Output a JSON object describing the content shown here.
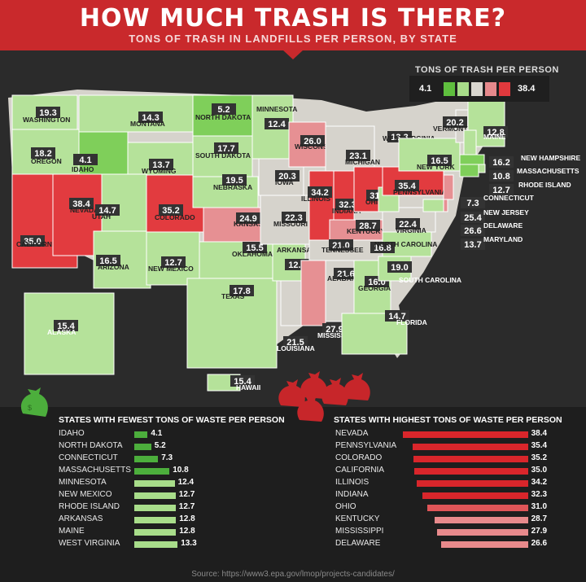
{
  "header": {
    "title": "HOW MUCH TRASH IS THERE?",
    "subtitle": "TONS OF TRASH IN LANDFILLS PER PERSON, BY STATE"
  },
  "legend": {
    "title": "TONS OF TRASH PER PERSON",
    "min": "4.1",
    "max": "38.4",
    "swatches": [
      "#5fbf3e",
      "#a8dd8a",
      "#d9d6cf",
      "#e6898c",
      "#e0393d"
    ]
  },
  "colors": {
    "low": "#7fcf5a",
    "light": "#b5e29a",
    "mid": "#d6d3cc",
    "pink": "#e69093",
    "high": "#e23b3f",
    "banner": "#c9292c"
  },
  "chart_data": {
    "type": "choropleth",
    "unit": "tons of trash per person",
    "states": [
      {
        "name": "WASHINGTON",
        "value": "19.3"
      },
      {
        "name": "OREGON",
        "value": "18.2"
      },
      {
        "name": "CALIFORNIA",
        "value": "35.0"
      },
      {
        "name": "NEVADA",
        "value": "38.4"
      },
      {
        "name": "IDAHO",
        "value": "4.1"
      },
      {
        "name": "MONTANA",
        "value": "14.3"
      },
      {
        "name": "WYOMING",
        "value": "13.7"
      },
      {
        "name": "UTAH",
        "value": "14.7"
      },
      {
        "name": "ARIZONA",
        "value": "16.5"
      },
      {
        "name": "COLORADO",
        "value": "35.2"
      },
      {
        "name": "NEW MEXICO",
        "value": "12.7"
      },
      {
        "name": "NORTH DAKOTA",
        "value": "5.2"
      },
      {
        "name": "SOUTH DAKOTA",
        "value": "17.7"
      },
      {
        "name": "NEBRASKA",
        "value": "19.5"
      },
      {
        "name": "KANSAS",
        "value": "24.9"
      },
      {
        "name": "OKLAHOMA",
        "value": "15.5"
      },
      {
        "name": "TEXAS",
        "value": "17.8"
      },
      {
        "name": "MINNESOTA",
        "value": "12.4"
      },
      {
        "name": "IOWA",
        "value": "20.3"
      },
      {
        "name": "MISSOURI",
        "value": "22.3"
      },
      {
        "name": "ARKANSAS",
        "value": "12.8"
      },
      {
        "name": "LOUISIANA",
        "value": "21.5"
      },
      {
        "name": "WISCONSIN",
        "value": "26.0"
      },
      {
        "name": "ILLINOIS",
        "value": "34.2"
      },
      {
        "name": "MICHIGAN",
        "value": "23.1"
      },
      {
        "name": "INDIANA",
        "value": "32.3"
      },
      {
        "name": "OHIO",
        "value": "31.0"
      },
      {
        "name": "KENTUCKY",
        "value": "28.7"
      },
      {
        "name": "TENNESSEE",
        "value": "21.0"
      },
      {
        "name": "MISSISSIPPI",
        "value": "27.9"
      },
      {
        "name": "ALABAMA",
        "value": "21.6"
      },
      {
        "name": "GEORGIA",
        "value": "16.0"
      },
      {
        "name": "FLORIDA",
        "value": "14.7"
      },
      {
        "name": "SOUTH CAROLINA",
        "value": "19.0"
      },
      {
        "name": "NORTH CAROLINA",
        "value": "16.8"
      },
      {
        "name": "VIRGINIA",
        "value": "22.4"
      },
      {
        "name": "WEST VIRGINIA",
        "value": "13.3"
      },
      {
        "name": "PENNSYLVANIA",
        "value": "35.4"
      },
      {
        "name": "NEW YORK",
        "value": "16.5"
      },
      {
        "name": "VERMONT",
        "value": "20.2"
      },
      {
        "name": "MAINE",
        "value": "12.8"
      },
      {
        "name": "NEW HAMPSHIRE",
        "value": "16.2"
      },
      {
        "name": "MASSACHUSETTS",
        "value": "10.8"
      },
      {
        "name": "RHODE ISLAND",
        "value": "12.7"
      },
      {
        "name": "CONNECTICUT",
        "value": "7.3"
      },
      {
        "name": "NEW JERSEY",
        "value": "25.4"
      },
      {
        "name": "DELAWARE",
        "value": "26.6"
      },
      {
        "name": "MARYLAND",
        "value": "13.7"
      },
      {
        "name": "ALASKA",
        "value": "15.4"
      },
      {
        "name": "HAWAII",
        "value": "15.4"
      }
    ],
    "rankings": [
      {
        "type": "bar",
        "title": "STATES WITH FEWEST TONS OF WASTE PER PERSON",
        "categories": [
          "IDAHO",
          "NORTH DAKOTA",
          "CONNECTICUT",
          "MASSACHUSETTS",
          "MINNESOTA",
          "NEW MEXICO",
          "RHODE ISLAND",
          "ARKANSAS",
          "MAINE",
          "WEST VIRGINIA"
        ],
        "values": [
          4.1,
          5.2,
          7.3,
          10.8,
          12.4,
          12.7,
          12.7,
          12.8,
          12.8,
          13.3
        ],
        "value_labels": [
          "4.1",
          "5.2",
          "7.3",
          "10.8",
          "12.4",
          "12.7",
          "12.7",
          "12.8",
          "12.8",
          "13.3"
        ]
      },
      {
        "type": "bar",
        "title": "STATES WITH HIGHEST TONS OF WASTE PER PERSON",
        "categories": [
          "NEVADA",
          "PENNSYLVANIA",
          "COLORADO",
          "CALIFORNIA",
          "ILLINOIS",
          "INDIANA",
          "OHIO",
          "KENTUCKY",
          "MISSISSIPPI",
          "DELAWARE"
        ],
        "values": [
          38.4,
          35.4,
          35.2,
          35.0,
          34.2,
          32.3,
          31.0,
          28.7,
          27.9,
          26.6
        ],
        "value_labels": [
          "38.4",
          "35.4",
          "35.2",
          "35.0",
          "34.2",
          "32.3",
          "31.0",
          "28.7",
          "27.9",
          "26.6"
        ]
      }
    ]
  },
  "source": "Source: https://www3.epa.gov/lmop/projects-candidates/"
}
